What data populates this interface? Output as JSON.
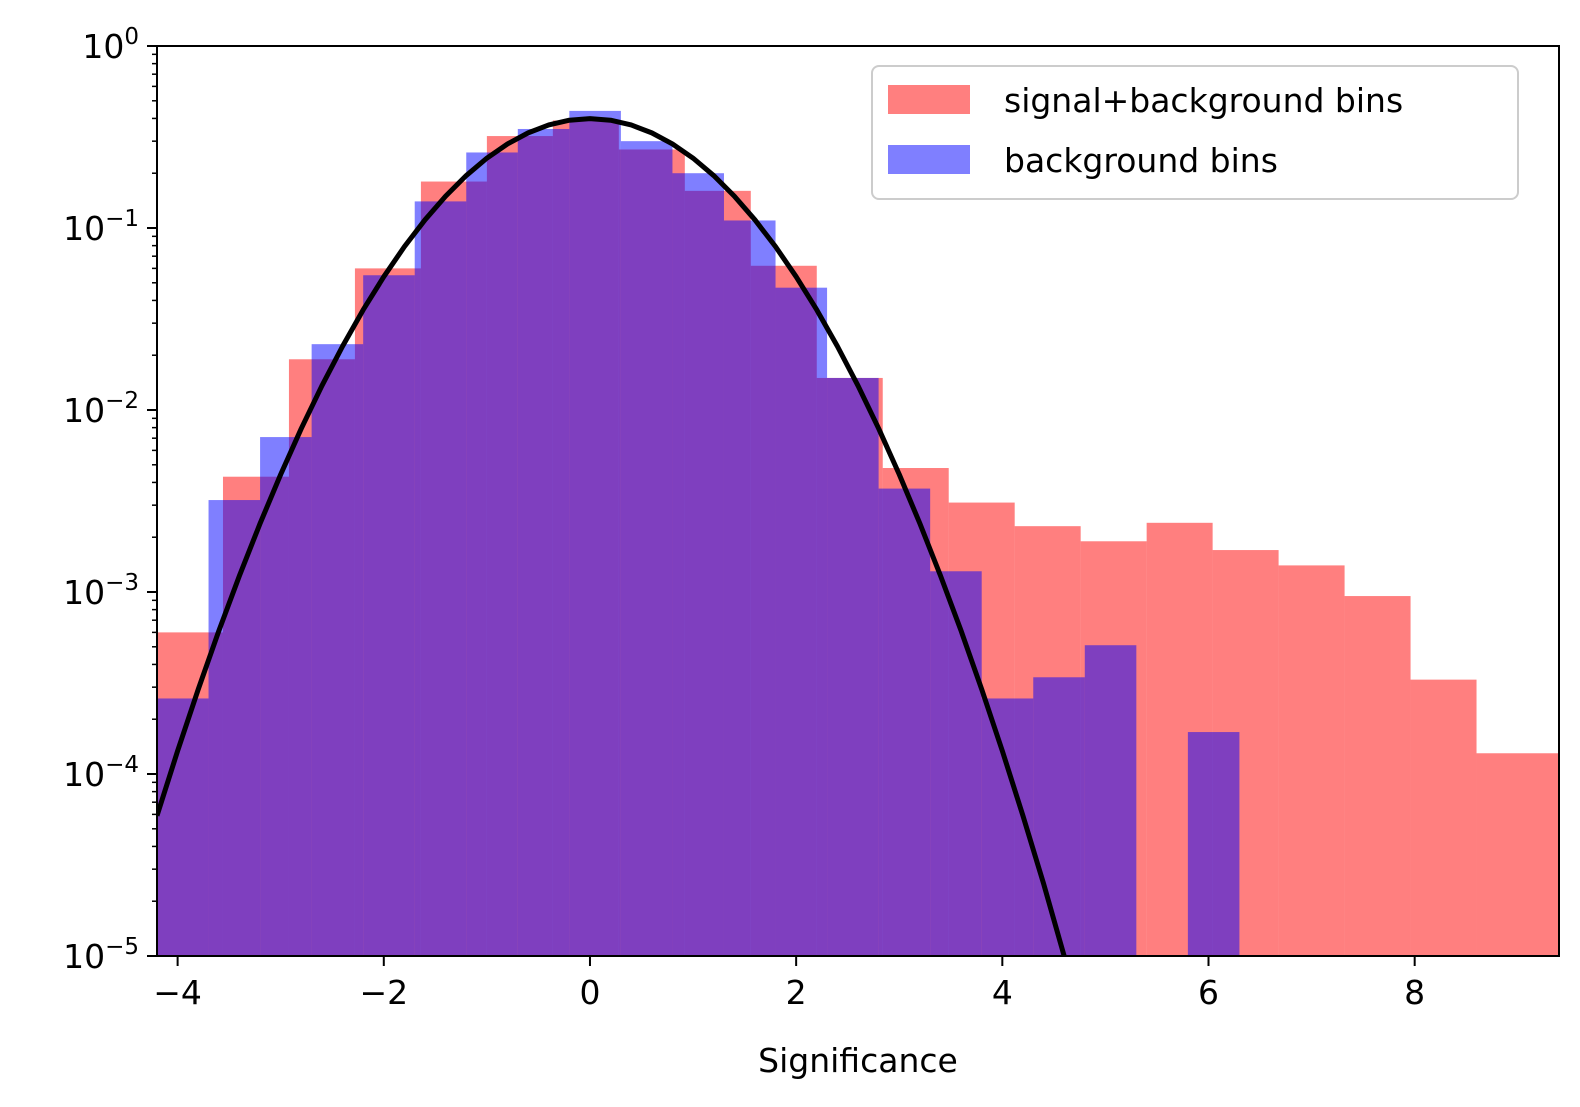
{
  "chart_data": {
    "type": "histogram",
    "xlabel": "Significance",
    "ylabel": "",
    "yscale": "log",
    "xlim": [
      -4.2,
      9.4
    ],
    "ylim": [
      1e-05,
      1
    ],
    "xticks": [
      -4,
      -2,
      0,
      2,
      4,
      6,
      8
    ],
    "yticks": [
      {
        "value": 1,
        "base": "10",
        "exp": "0"
      },
      {
        "value": 0.1,
        "base": "10",
        "exp": "−1"
      },
      {
        "value": 0.01,
        "base": "10",
        "exp": "−2"
      },
      {
        "value": 0.001,
        "base": "10",
        "exp": "−3"
      },
      {
        "value": 0.0001,
        "base": "10",
        "exp": "−4"
      },
      {
        "value": 1e-05,
        "base": "10",
        "exp": "−5"
      }
    ],
    "legend_position": "upper-right",
    "series": [
      {
        "name": "signal+background bins",
        "color": "#ff0000",
        "alpha": 0.5,
        "edges": [
          -4.2,
          -3.56,
          -2.92,
          -2.28,
          -1.64,
          -1.0,
          -0.36,
          0.28,
          0.92,
          1.56,
          2.2,
          2.84,
          3.48,
          4.12,
          4.76,
          5.4,
          6.04,
          6.68,
          7.32,
          7.96,
          8.6,
          9.24,
          9.88
        ],
        "values": [
          0.0006,
          0.0043,
          0.019,
          0.06,
          0.18,
          0.32,
          0.39,
          0.27,
          0.16,
          0.062,
          0.015,
          0.0048,
          0.0031,
          0.0023,
          0.0019,
          0.0024,
          0.0017,
          0.0014,
          0.00095,
          0.00033,
          0.00013,
          0.00013
        ]
      },
      {
        "name": "background bins",
        "color": "#0000ff",
        "alpha": 0.5,
        "edges": [
          -4.2,
          -3.7,
          -3.2,
          -2.7,
          -2.2,
          -1.7,
          -1.2,
          -0.7,
          -0.2,
          0.3,
          0.8,
          1.3,
          1.8,
          2.3,
          2.8,
          3.3,
          3.8,
          4.3,
          4.8,
          5.3,
          5.8,
          6.3
        ],
        "values": [
          0.00026,
          0.0032,
          0.0071,
          0.023,
          0.055,
          0.14,
          0.26,
          0.35,
          0.44,
          0.3,
          0.2,
          0.11,
          0.047,
          0.015,
          0.0037,
          0.0013,
          0.00026,
          0.00034,
          0.00051,
          0,
          0.00017
        ]
      },
      {
        "name": "",
        "type": "line",
        "color": "#000000",
        "x": [
          -4.2,
          -4.0,
          -3.8,
          -3.6,
          -3.4,
          -3.2,
          -3.0,
          -2.8,
          -2.6,
          -2.4,
          -2.2,
          -2.0,
          -1.8,
          -1.6,
          -1.4,
          -1.2,
          -1.0,
          -0.8,
          -0.6,
          -0.4,
          -0.2,
          0.0,
          0.2,
          0.4,
          0.6,
          0.8,
          1.0,
          1.2,
          1.4,
          1.6,
          1.8,
          2.0,
          2.2,
          2.4,
          2.6,
          2.8,
          3.0,
          3.2,
          3.4,
          3.6,
          3.8,
          4.0,
          4.2,
          4.4,
          4.6
        ],
        "y": [
          5.9e-05,
          0.000134,
          0.000292,
          0.000612,
          0.00123,
          0.00238,
          0.00443,
          0.00792,
          0.0136,
          0.0224,
          0.0355,
          0.054,
          0.079,
          0.1109,
          0.1497,
          0.1942,
          0.242,
          0.2897,
          0.3332,
          0.3683,
          0.391,
          0.3989,
          0.391,
          0.3683,
          0.3332,
          0.2897,
          0.242,
          0.1942,
          0.1497,
          0.1109,
          0.079,
          0.054,
          0.0355,
          0.0224,
          0.0136,
          0.00792,
          0.00443,
          0.00238,
          0.00123,
          0.000612,
          0.000292,
          0.000134,
          5.9e-05,
          2.5e-05,
          1e-05
        ]
      }
    ]
  }
}
